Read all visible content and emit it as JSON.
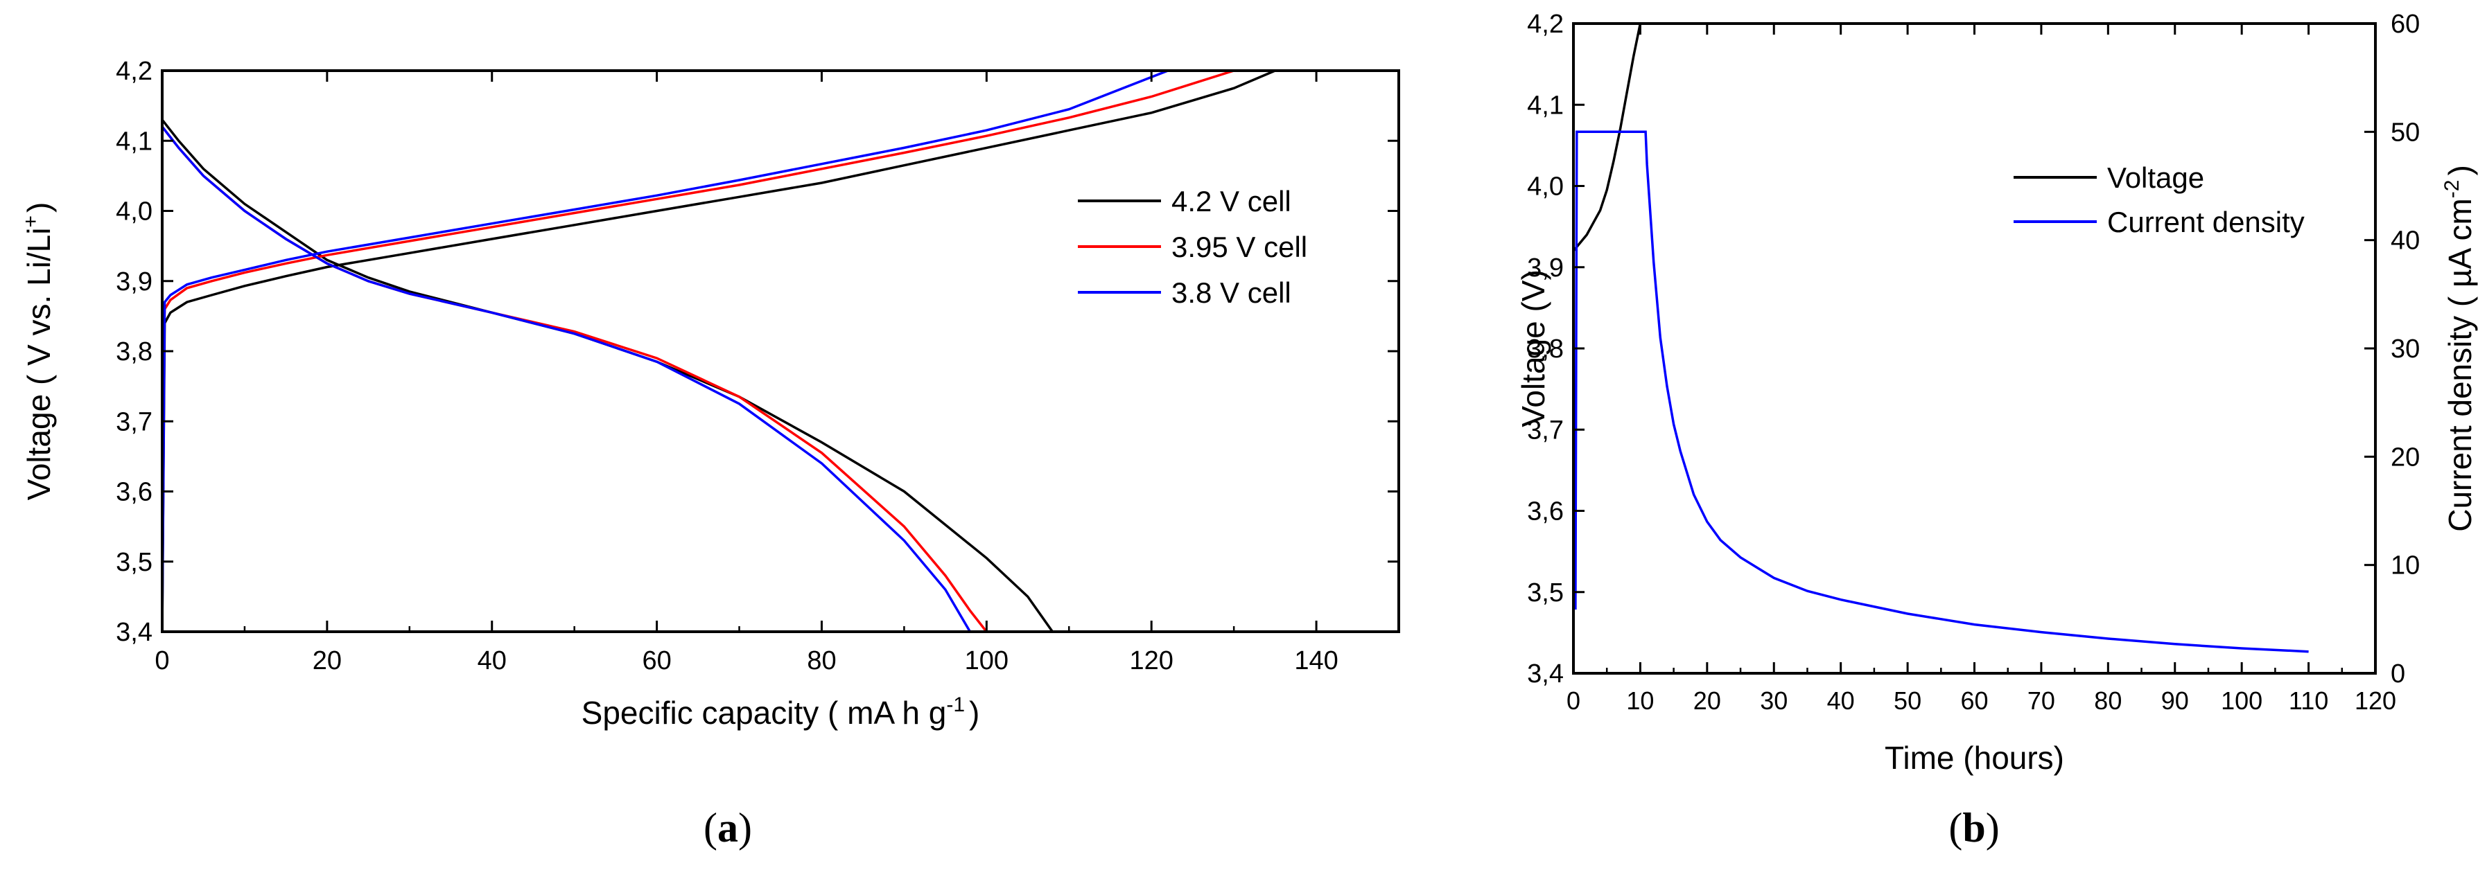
{
  "colors": {
    "black": "#000000",
    "red": "#ff0000",
    "blue": "#0000ff"
  },
  "chart_data": [
    {
      "id": "a",
      "type": "line",
      "caption_letter": "a",
      "caption_open": "(",
      "caption_close": ")",
      "xlabel_main": "Specific capacity ( mA h g",
      "xlabel_sup": "-1",
      "xlabel_end": ")",
      "ylabel_main": "Voltage ( V vs. Li/Li",
      "ylabel_sup": "+",
      "ylabel_end": ")",
      "xlim": [
        0,
        150
      ],
      "ylim": [
        3.4,
        4.2
      ],
      "xticks": [
        0,
        20,
        40,
        60,
        80,
        100,
        120,
        140
      ],
      "xtick_labels": [
        "0",
        "20",
        "40",
        "60",
        "80",
        "100",
        "120",
        "140"
      ],
      "yticks": [
        3.4,
        3.5,
        3.6,
        3.7,
        3.8,
        3.9,
        4.0,
        4.1,
        4.2
      ],
      "ytick_labels": [
        "3,4",
        "3,5",
        "3,6",
        "3,7",
        "3,8",
        "3,9",
        "4,0",
        "4,1",
        "4,2"
      ],
      "legend": {
        "placement": "center-right",
        "entries": [
          "4.2 V cell",
          "3.95 V cell",
          "3.8 V cell"
        ]
      },
      "series": [
        {
          "name": "4.2 V cell",
          "color": "#000000",
          "charge": {
            "x": [
              0,
              0.3,
              1,
              3,
              6,
              10,
              15,
              20,
              30,
              40,
              50,
              60,
              70,
              80,
              90,
              100,
              110,
              120,
              130,
              135
            ],
            "y": [
              3.4,
              3.84,
              3.855,
              3.87,
              3.88,
              3.893,
              3.907,
              3.92,
              3.94,
              3.96,
              3.98,
              4.0,
              4.02,
              4.04,
              4.065,
              4.09,
              4.115,
              4.14,
              4.175,
              4.2
            ]
          },
          "discharge": {
            "x": [
              0,
              2,
              5,
              10,
              15,
              20,
              25,
              30,
              40,
              50,
              60,
              70,
              80,
              90,
              100,
              105,
              108
            ],
            "y": [
              4.13,
              4.1,
              4.06,
              4.01,
              3.97,
              3.93,
              3.905,
              3.885,
              3.855,
              3.825,
              3.785,
              3.735,
              3.67,
              3.6,
              3.505,
              3.45,
              3.4
            ]
          }
        },
        {
          "name": "3.95 V cell",
          "color": "#ff0000",
          "charge": {
            "x": [
              0,
              0.3,
              1,
              3,
              6,
              10,
              15,
              20,
              30,
              40,
              50,
              60,
              70,
              80,
              90,
              100,
              110,
              120,
              130
            ],
            "y": [
              3.72,
              3.86,
              3.873,
              3.89,
              3.9,
              3.912,
              3.925,
              3.937,
              3.957,
              3.977,
              3.997,
              4.017,
              4.037,
              4.06,
              4.083,
              4.107,
              4.133,
              4.163,
              4.2
            ]
          },
          "discharge": {
            "x": [
              0,
              2,
              5,
              10,
              15,
              20,
              25,
              30,
              40,
              50,
              60,
              70,
              80,
              90,
              95,
              98,
              100
            ],
            "y": [
              4.12,
              4.09,
              4.05,
              4.0,
              3.96,
              3.925,
              3.9,
              3.882,
              3.855,
              3.828,
              3.79,
              3.735,
              3.655,
              3.55,
              3.48,
              3.43,
              3.4
            ]
          }
        },
        {
          "name": "3.8 V cell",
          "color": "#0000ff",
          "charge": {
            "x": [
              0,
              0.3,
              1,
              3,
              6,
              10,
              15,
              20,
              30,
              40,
              50,
              60,
              70,
              80,
              90,
              100,
              110,
              122
            ],
            "y": [
              3.4,
              3.87,
              3.88,
              3.895,
              3.905,
              3.916,
              3.93,
              3.942,
              3.962,
              3.982,
              4.002,
              4.022,
              4.044,
              4.067,
              4.09,
              4.115,
              4.145,
              4.2
            ]
          },
          "discharge": {
            "x": [
              0,
              2,
              5,
              10,
              15,
              20,
              25,
              30,
              40,
              50,
              60,
              70,
              80,
              90,
              95,
              98
            ],
            "y": [
              4.12,
              4.09,
              4.05,
              4.0,
              3.96,
              3.925,
              3.9,
              3.882,
              3.855,
              3.825,
              3.785,
              3.725,
              3.64,
              3.53,
              3.46,
              3.4
            ]
          }
        }
      ]
    },
    {
      "id": "b",
      "type": "line",
      "caption_letter": "b",
      "caption_open": "(",
      "caption_close": ")",
      "xlabel": "Time (hours)",
      "ylabel_left": "Voltage (V)",
      "ylabel_right_main": "Current density ( µA cm",
      "ylabel_right_sup": "-2",
      "ylabel_right_end": ")",
      "xlim": [
        0,
        120
      ],
      "ylim_left": [
        3.4,
        4.2
      ],
      "ylim_right": [
        0,
        60
      ],
      "xticks": [
        0,
        10,
        20,
        30,
        40,
        50,
        60,
        70,
        80,
        90,
        100,
        110,
        120
      ],
      "xtick_labels": [
        "0",
        "10",
        "20",
        "30",
        "40",
        "50",
        "60",
        "70",
        "80",
        "90",
        "100",
        "110",
        "120"
      ],
      "yticks_left": [
        3.4,
        3.5,
        3.6,
        3.7,
        3.8,
        3.9,
        4.0,
        4.1,
        4.2
      ],
      "ytick_labels_left": [
        "3,4",
        "3,5",
        "3,6",
        "3,7",
        "3,8",
        "3,9",
        "4,0",
        "4,1",
        "4,2"
      ],
      "yticks_right": [
        0,
        10,
        20,
        30,
        40,
        50,
        60
      ],
      "ytick_labels_right": [
        "0",
        "10",
        "20",
        "30",
        "40",
        "50",
        "60"
      ],
      "legend": {
        "placement": "top-right",
        "entries": [
          "Voltage",
          "Current density"
        ]
      },
      "series": [
        {
          "name": "Voltage",
          "color": "#000000",
          "axis": "left",
          "x": [
            0,
            0.5,
            1,
            2,
            3,
            4,
            5,
            6,
            7,
            8,
            9,
            10,
            10.5,
            20,
            40,
            60,
            80,
            100,
            110
          ],
          "y": [
            3.92,
            3.925,
            3.93,
            3.94,
            3.955,
            3.97,
            3.995,
            4.03,
            4.07,
            4.115,
            4.16,
            4.2,
            4.2,
            4.2,
            4.2,
            4.2,
            4.2,
            4.2,
            4.2
          ]
        },
        {
          "name": "Current density",
          "color": "#0000ff",
          "axis": "right",
          "x": [
            0,
            0.3,
            0.5,
            10.8,
            11,
            12,
            13,
            14,
            15,
            16,
            18,
            20,
            22,
            25,
            30,
            35,
            40,
            50,
            60,
            70,
            80,
            90,
            100,
            110
          ],
          "y": [
            6,
            6,
            50,
            50,
            47,
            38,
            31,
            26.5,
            23,
            20.5,
            16.5,
            14,
            12.3,
            10.7,
            8.8,
            7.6,
            6.8,
            5.5,
            4.5,
            3.8,
            3.2,
            2.7,
            2.3,
            2.0
          ]
        }
      ]
    }
  ]
}
